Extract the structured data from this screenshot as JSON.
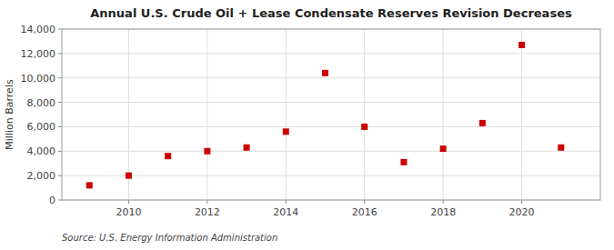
{
  "chart_data": {
    "type": "scatter",
    "title": "Annual U.S. Crude Oil + Lease Condensate Reserves Revision Decreases",
    "y_label": "Million Barrels",
    "annotations": [
      "Source: U.S. Energy Information Administration"
    ],
    "x": [
      2009,
      2010,
      2011,
      2012,
      2013,
      2014,
      2015,
      2016,
      2017,
      2018,
      2019,
      2020,
      2021
    ],
    "values": [
      1200,
      2000,
      3600,
      4000,
      4300,
      5600,
      10400,
      6000,
      3100,
      4200,
      6300,
      12700,
      4300
    ],
    "color": "#cc0000",
    "marker": "square",
    "xlim": [
      2008.3,
      2022.0
    ],
    "ylim": [
      0,
      14000
    ],
    "xticks": [
      2010,
      2012,
      2014,
      2016,
      2018,
      2020
    ],
    "yticks": [
      0,
      {
        "value": 2000,
        "label": "2,000"
      },
      {
        "value": 4000,
        "label": "4,000"
      },
      {
        "value": 6000,
        "label": "6,000"
      },
      {
        "value": 8000,
        "label": "8,000"
      },
      {
        "value": 10000,
        "label": "10,000"
      },
      {
        "value": 12000,
        "label": "12,000"
      },
      {
        "value": 14000,
        "label": "14,000"
      }
    ],
    "grid": true
  }
}
